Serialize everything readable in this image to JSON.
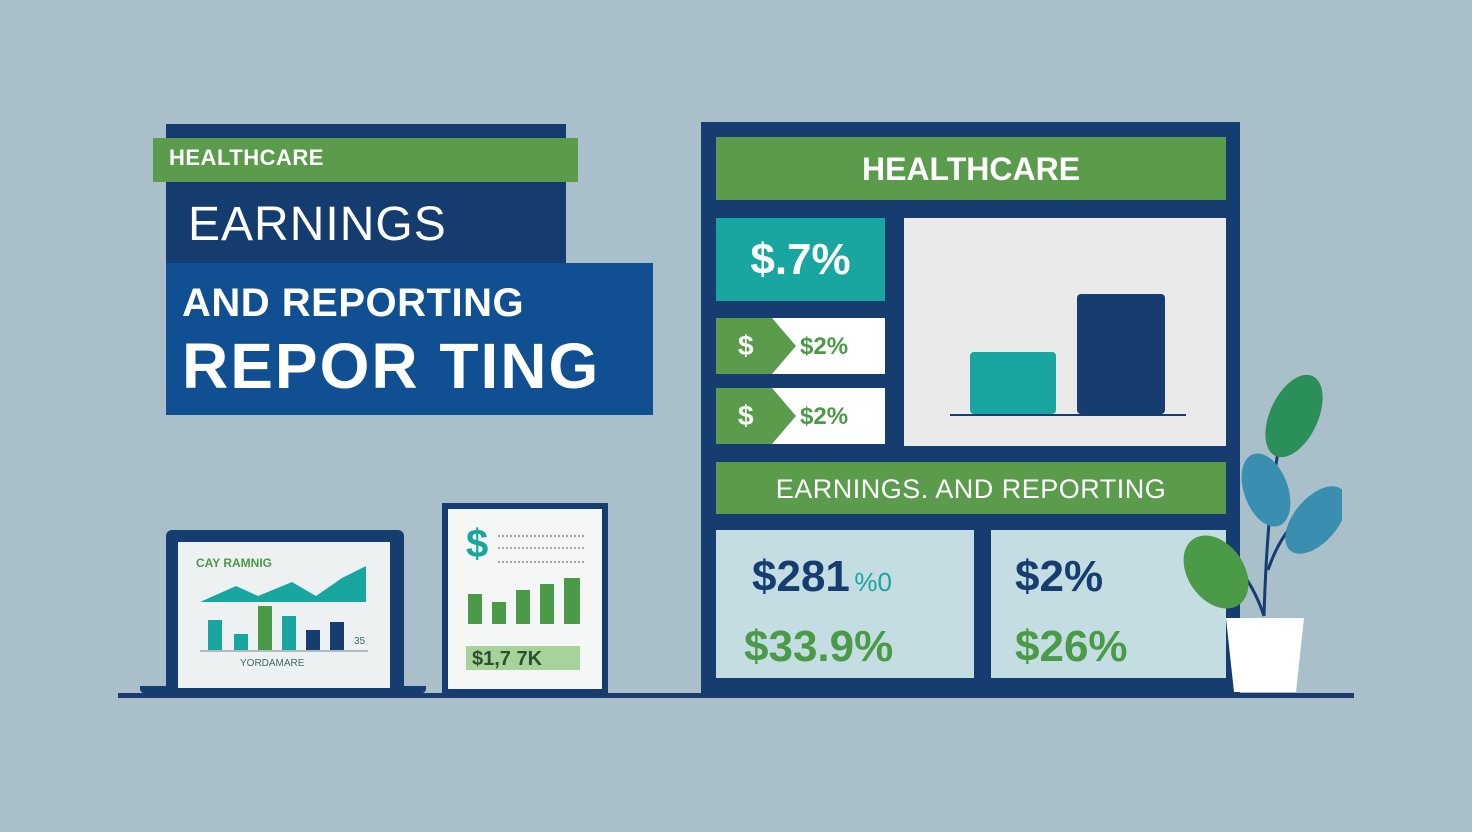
{
  "colors": {
    "background": "#a9bfc9",
    "navy": "#163d6f",
    "blue": "#104f91",
    "green": "#5a9c4b",
    "teal": "#1aa6a0",
    "card": "#c4dde3"
  },
  "title_block": {
    "tag": "HEALTHCARE",
    "line1": "EARNINGS",
    "line2": "AND REPORTING",
    "line3": "REPOR TING"
  },
  "laptop": {
    "title": "CAY RAMNIG",
    "footer": "YORDAMARE",
    "side_number": "35"
  },
  "document": {
    "dollar": "$",
    "value": "$1,7 7K"
  },
  "dashboard": {
    "header": "HEALTHCARE",
    "big_stat": "$.7%",
    "rows": [
      {
        "icon": "$",
        "value": "$2%"
      },
      {
        "icon": "$",
        "value": "$2%"
      }
    ],
    "subheader": "EARNINGS. AND REPORTING",
    "card_a": {
      "value1": "$281",
      "mark": "%0",
      "value2": "$33.9%"
    },
    "card_b": {
      "value1": "$2%",
      "value2": "$26%"
    }
  },
  "icons": [
    "dollar-icon",
    "bar-chart-icon",
    "plant-icon",
    "laptop-icon",
    "document-icon"
  ]
}
